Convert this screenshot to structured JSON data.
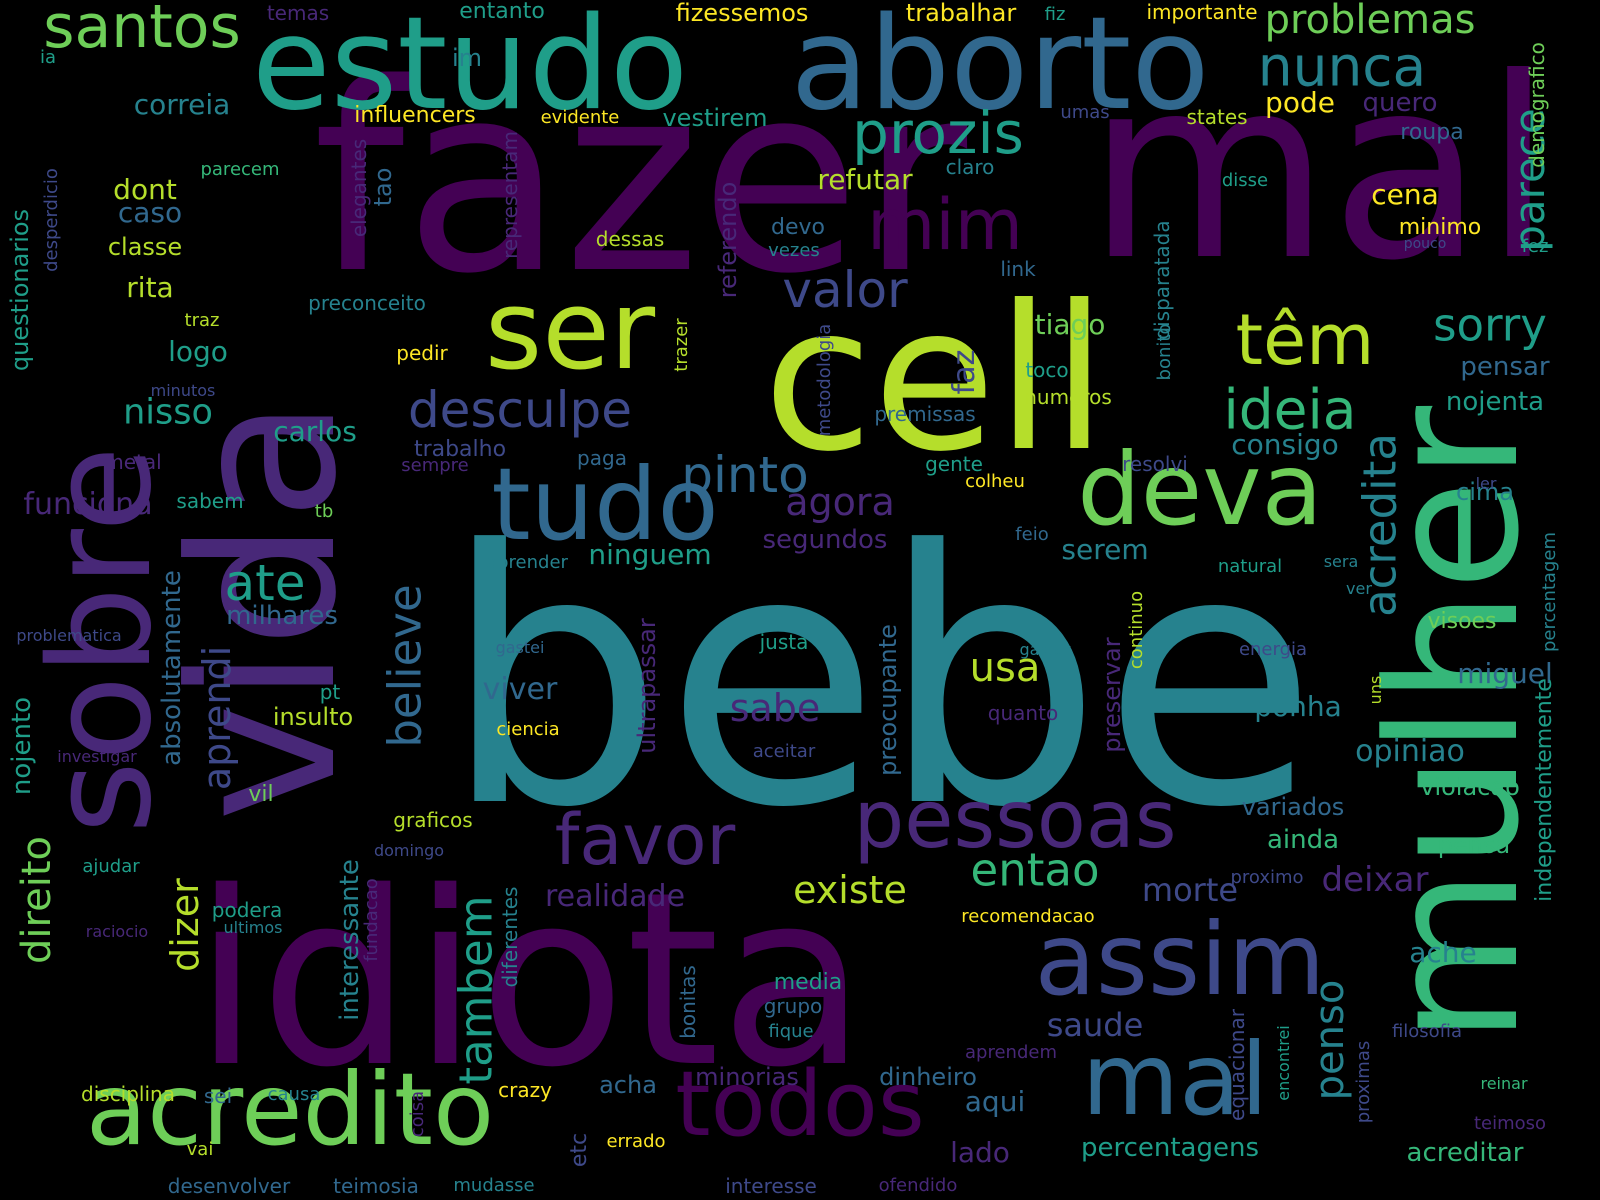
{
  "palette": {
    "p1": "#440154",
    "p2": "#482878",
    "p3": "#3e4989",
    "p4": "#31688e",
    "p5": "#26828e",
    "p6": "#1f9e89",
    "p7": "#35b779",
    "p8": "#6ece58",
    "p9": "#b5de2b",
    "p10": "#fde725",
    "background": "#000000"
  },
  "words": [
    {
      "text": "bebe",
      "c": "p5"
    },
    {
      "text": "fazer",
      "c": "p1"
    },
    {
      "text": "mal",
      "c": "p1"
    },
    {
      "text": "idiota",
      "c": "p1"
    },
    {
      "text": "vida",
      "c": "p2"
    },
    {
      "text": "cell",
      "c": "p9"
    },
    {
      "text": "mulher",
      "c": "p7"
    },
    {
      "text": "sobre",
      "c": "p2"
    },
    {
      "text": "estudo",
      "c": "p6"
    },
    {
      "text": "aborto",
      "c": "p4"
    },
    {
      "text": "ser",
      "c": "p9"
    },
    {
      "text": "deva",
      "c": "p8"
    },
    {
      "text": "tudo",
      "c": "p4"
    },
    {
      "text": "assim",
      "c": "p3"
    },
    {
      "text": "acredito",
      "c": "p8"
    },
    {
      "text": "mal",
      "c": "p4"
    },
    {
      "text": "todos",
      "c": "p1"
    },
    {
      "text": "pessoas",
      "c": "p2"
    },
    {
      "text": "favor",
      "c": "p2"
    },
    {
      "text": "mim",
      "c": "p1"
    },
    {
      "text": "têm",
      "c": "p9"
    },
    {
      "text": "santos",
      "c": "p8"
    },
    {
      "text": "prozis",
      "c": "p6"
    },
    {
      "text": "nunca",
      "c": "p5"
    },
    {
      "text": "problemas",
      "c": "p8"
    },
    {
      "text": "ideia",
      "c": "p7"
    },
    {
      "text": "desculpe",
      "c": "p3"
    },
    {
      "text": "pinto",
      "c": "p4"
    },
    {
      "text": "valor",
      "c": "p3"
    },
    {
      "text": "sorry",
      "c": "p6"
    },
    {
      "text": "acredita",
      "c": "p5"
    },
    {
      "text": "parece",
      "c": "p6"
    },
    {
      "text": "believe",
      "c": "p4"
    },
    {
      "text": "ate",
      "c": "p6"
    },
    {
      "text": "entao",
      "c": "p7"
    },
    {
      "text": "existe",
      "c": "p9"
    },
    {
      "text": "usa",
      "c": "p9"
    },
    {
      "text": "agora",
      "c": "p2"
    },
    {
      "text": "tambem",
      "c": "p6"
    },
    {
      "text": "direito",
      "c": "p8"
    },
    {
      "text": "dizer",
      "c": "p9"
    },
    {
      "text": "aprendi",
      "c": "p3"
    },
    {
      "text": "sabe",
      "c": "p2"
    },
    {
      "text": "penso",
      "c": "p5"
    },
    {
      "text": "saude",
      "c": "p3"
    },
    {
      "text": "ninguem",
      "c": "p6"
    },
    {
      "text": "nisso",
      "c": "p6"
    },
    {
      "text": "realidade",
      "c": "p2"
    },
    {
      "text": "deixar",
      "c": "p2"
    },
    {
      "text": "morte",
      "c": "p3"
    },
    {
      "text": "viver",
      "c": "p4"
    },
    {
      "text": "opiniao",
      "c": "p5"
    },
    {
      "text": "refutar",
      "c": "p9"
    },
    {
      "text": "tiago",
      "c": "p8"
    },
    {
      "text": "faz",
      "c": "p3"
    },
    {
      "text": "carlos",
      "c": "p6"
    },
    {
      "text": "consigo",
      "c": "p5"
    },
    {
      "text": "nojenta",
      "c": "p6"
    },
    {
      "text": "pensar",
      "c": "p4"
    },
    {
      "text": "cena",
      "c": "p10"
    },
    {
      "text": "pode",
      "c": "p10"
    },
    {
      "text": "quero",
      "c": "p2"
    },
    {
      "text": "correia",
      "c": "p5"
    },
    {
      "text": "dont",
      "c": "p9"
    },
    {
      "text": "caso",
      "c": "p4"
    },
    {
      "text": "rita",
      "c": "p9"
    },
    {
      "text": "logo",
      "c": "p6"
    },
    {
      "text": "classe",
      "c": "p9"
    },
    {
      "text": "funciona",
      "c": "p2"
    },
    {
      "text": "milhares",
      "c": "p4"
    },
    {
      "text": "questionarios",
      "c": "p6"
    },
    {
      "text": "absolutamente",
      "c": "p4"
    },
    {
      "text": "nojento",
      "c": "p6"
    },
    {
      "text": "interessante",
      "c": "p5"
    },
    {
      "text": "ponha",
      "c": "p5"
    },
    {
      "text": "miguel",
      "c": "p4"
    },
    {
      "text": "ache",
      "c": "p5"
    },
    {
      "text": "pensa",
      "c": "p7"
    },
    {
      "text": "violacao",
      "c": "p7"
    },
    {
      "text": "variados",
      "c": "p4"
    },
    {
      "text": "ainda",
      "c": "p7"
    },
    {
      "text": "aqui",
      "c": "p4"
    },
    {
      "text": "lado",
      "c": "p2"
    },
    {
      "text": "percentagens",
      "c": "p6"
    },
    {
      "text": "acreditar",
      "c": "p7"
    },
    {
      "text": "dinheiro",
      "c": "p4"
    },
    {
      "text": "minorias",
      "c": "p2"
    },
    {
      "text": "acha",
      "c": "p4"
    },
    {
      "text": "serem",
      "c": "p5"
    },
    {
      "text": "preservar",
      "c": "p2"
    },
    {
      "text": "segundos",
      "c": "p2"
    },
    {
      "text": "cima",
      "c": "p5"
    },
    {
      "text": "insulto",
      "c": "p9"
    },
    {
      "text": "independentemente",
      "c": "p6"
    },
    {
      "text": "visoes",
      "c": "p8"
    },
    {
      "text": "ultrapassar",
      "c": "p2"
    },
    {
      "text": "preocupante",
      "c": "p4"
    },
    {
      "text": "referendo",
      "c": "p2"
    },
    {
      "text": "disparatada",
      "c": "p5"
    },
    {
      "text": "demografico",
      "c": "p8"
    },
    {
      "text": "representam",
      "c": "p2"
    },
    {
      "text": "elegantes",
      "c": "p2"
    },
    {
      "text": "desperdicio",
      "c": "p3"
    },
    {
      "text": "metodologia",
      "c": "p3"
    },
    {
      "text": "percentagem",
      "c": "p5"
    },
    {
      "text": "bonitas",
      "c": "p4"
    },
    {
      "text": "diferentes",
      "c": "p5"
    },
    {
      "text": "fundacao",
      "c": "p2"
    },
    {
      "text": "continuo",
      "c": "p9"
    },
    {
      "text": "bonito",
      "c": "p5"
    },
    {
      "text": "trazer",
      "c": "p9"
    },
    {
      "text": "tao",
      "c": "p4"
    },
    {
      "text": "equacionar",
      "c": "p3"
    },
    {
      "text": "encontrei",
      "c": "p6"
    },
    {
      "text": "proximas",
      "c": "p3"
    },
    {
      "text": "fez",
      "c": "p6"
    },
    {
      "text": "coisa",
      "c": "p2"
    },
    {
      "text": "etc",
      "c": "p3"
    },
    {
      "text": "uns",
      "c": "p9"
    },
    {
      "text": "temas",
      "c": "p2"
    },
    {
      "text": "entanto",
      "c": "p6"
    },
    {
      "text": "fiz",
      "c": "p6"
    },
    {
      "text": "fizessemos",
      "c": "p10"
    },
    {
      "text": "trabalhar",
      "c": "p10"
    },
    {
      "text": "importante",
      "c": "p10"
    },
    {
      "text": "ia",
      "c": "p6"
    },
    {
      "text": "im",
      "c": "p5"
    },
    {
      "text": "influencers",
      "c": "p10"
    },
    {
      "text": "evidente",
      "c": "p10"
    },
    {
      "text": "vestirem",
      "c": "p6"
    },
    {
      "text": "umas",
      "c": "p3"
    },
    {
      "text": "states",
      "c": "p9"
    },
    {
      "text": "roupa",
      "c": "p4"
    },
    {
      "text": "parecem",
      "c": "p7"
    },
    {
      "text": "claro",
      "c": "p5"
    },
    {
      "text": "disse",
      "c": "p6"
    },
    {
      "text": "minimo",
      "c": "p10"
    },
    {
      "text": "pouco",
      "c": "p3"
    },
    {
      "text": "devo",
      "c": "p4"
    },
    {
      "text": "dessas",
      "c": "p9"
    },
    {
      "text": "vezes",
      "c": "p5"
    },
    {
      "text": "link",
      "c": "p4"
    },
    {
      "text": "preconceito",
      "c": "p5"
    },
    {
      "text": "traz",
      "c": "p9"
    },
    {
      "text": "pedir",
      "c": "p10"
    },
    {
      "text": "minutos",
      "c": "p3"
    },
    {
      "text": "toco",
      "c": "p6"
    },
    {
      "text": "numeros",
      "c": "p9"
    },
    {
      "text": "premissas",
      "c": "p4"
    },
    {
      "text": "trabalho",
      "c": "p3"
    },
    {
      "text": "paga",
      "c": "p4"
    },
    {
      "text": "metal",
      "c": "p2"
    },
    {
      "text": "sempre",
      "c": "p2"
    },
    {
      "text": "gente",
      "c": "p6"
    },
    {
      "text": "colheu",
      "c": "p10"
    },
    {
      "text": "resolvi",
      "c": "p3"
    },
    {
      "text": "ler",
      "c": "p3"
    },
    {
      "text": "sabem",
      "c": "p6"
    },
    {
      "text": "tb",
      "c": "p8"
    },
    {
      "text": "feio",
      "c": "p4"
    },
    {
      "text": "aprender",
      "c": "p5"
    },
    {
      "text": "natural",
      "c": "p6"
    },
    {
      "text": "sera",
      "c": "p5"
    },
    {
      "text": "ver",
      "c": "p5"
    },
    {
      "text": "problematica",
      "c": "p3"
    },
    {
      "text": "gastei",
      "c": "p4"
    },
    {
      "text": "gastar",
      "c": "p5"
    },
    {
      "text": "energia",
      "c": "p3"
    },
    {
      "text": "justa",
      "c": "p6"
    },
    {
      "text": "pt",
      "c": "p6"
    },
    {
      "text": "quanto",
      "c": "p2"
    },
    {
      "text": "ciencia",
      "c": "p10"
    },
    {
      "text": "investigar",
      "c": "p2"
    },
    {
      "text": "aceitar",
      "c": "p3"
    },
    {
      "text": "vil",
      "c": "p8"
    },
    {
      "text": "graficos",
      "c": "p9"
    },
    {
      "text": "domingo",
      "c": "p3"
    },
    {
      "text": "ajudar",
      "c": "p6"
    },
    {
      "text": "proximo",
      "c": "p3"
    },
    {
      "text": "podera",
      "c": "p6"
    },
    {
      "text": "ultimos",
      "c": "p5"
    },
    {
      "text": "recomendacao",
      "c": "p10"
    },
    {
      "text": "raciocio",
      "c": "p2"
    },
    {
      "text": "media",
      "c": "p6"
    },
    {
      "text": "grupo",
      "c": "p4"
    },
    {
      "text": "fique",
      "c": "p5"
    },
    {
      "text": "filosofia",
      "c": "p3"
    },
    {
      "text": "aprendem",
      "c": "p2"
    },
    {
      "text": "disciplina",
      "c": "p9"
    },
    {
      "text": "sei",
      "c": "p4"
    },
    {
      "text": "causa",
      "c": "p5"
    },
    {
      "text": "crazy",
      "c": "p10"
    },
    {
      "text": "reinar",
      "c": "p7"
    },
    {
      "text": "teimoso",
      "c": "p2"
    },
    {
      "text": "vai",
      "c": "p9"
    },
    {
      "text": "errado",
      "c": "p10"
    },
    {
      "text": "desenvolver",
      "c": "p4"
    },
    {
      "text": "teimosia",
      "c": "p4"
    },
    {
      "text": "mudasse",
      "c": "p5"
    },
    {
      "text": "interesse",
      "c": "p3"
    },
    {
      "text": "ofendido",
      "c": "p2"
    }
  ]
}
